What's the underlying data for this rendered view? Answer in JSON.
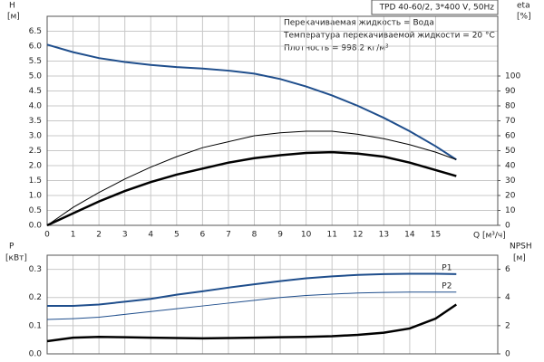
{
  "chart_data": [
    {
      "type": "line",
      "title": "TPD 40-60/2, 3*400 V, 50Hz",
      "annotations": [
        "Перекачиваемая жидкость = Вода",
        "Температура перекачиваемой жидкости = 20 °C",
        "Плотность = 998.2 кг/м³"
      ],
      "y_label": "H",
      "y_unit": "[м]",
      "y2_label": "eta",
      "y2_unit": "[%]",
      "x_label": "Q [м³/ч]",
      "x": [
        0,
        1,
        2,
        3,
        4,
        5,
        6,
        7,
        8,
        9,
        10,
        11,
        12,
        13,
        14,
        15,
        15.8
      ],
      "xlim": [
        0,
        17.4
      ],
      "xticks": [
        0,
        1,
        2,
        3,
        4,
        5,
        6,
        7,
        8,
        9,
        10,
        11,
        12,
        13,
        14,
        15
      ],
      "ylim": [
        0,
        7
      ],
      "yticks": [
        {
          "value": 0,
          "label": "0.0"
        },
        0.5,
        {
          "value": 1,
          "label": "1.0"
        },
        1.5,
        {
          "value": 2,
          "label": "2.0"
        },
        2.5,
        {
          "value": 3,
          "label": "3.0"
        },
        3.5,
        {
          "value": 4,
          "label": "4.0"
        },
        4.5,
        {
          "value": 5,
          "label": "5.0"
        },
        5.5,
        {
          "value": 6,
          "label": "6.0"
        },
        6.5
      ],
      "y2lim": [
        0,
        140
      ],
      "y2ticks": [
        0,
        10,
        20,
        30,
        40,
        50,
        60,
        70,
        80,
        90,
        100
      ],
      "grid": true,
      "series": [
        {
          "color": "#1f4e8c",
          "width": 2,
          "axis": "y",
          "values": [
            6.05,
            5.8,
            5.6,
            5.47,
            5.37,
            5.3,
            5.25,
            5.18,
            5.08,
            4.9,
            4.65,
            4.35,
            4.0,
            3.6,
            3.15,
            2.65,
            2.2
          ]
        },
        {
          "color": "#000000",
          "width": 1,
          "axis": "y2",
          "values": [
            0,
            12,
            22,
            31,
            39,
            46,
            52,
            56,
            60,
            62,
            63,
            63,
            61,
            58,
            54,
            49,
            44
          ]
        },
        {
          "color": "#000000",
          "width": 2.5,
          "axis": "y2",
          "values": [
            0,
            8,
            16,
            23,
            29,
            34,
            38,
            42,
            45,
            47,
            48.5,
            49,
            48,
            46,
            42,
            37,
            33
          ]
        }
      ]
    },
    {
      "type": "line",
      "y_label": "P",
      "y_unit": "[кВт]",
      "y2_label": "NPSH",
      "y2_unit": "[м]",
      "x": [
        0,
        1,
        2,
        3,
        4,
        5,
        6,
        7,
        8,
        9,
        10,
        11,
        12,
        13,
        14,
        15,
        15.8
      ],
      "xlim": [
        0,
        17.4
      ],
      "ylim": [
        0,
        0.35
      ],
      "yticks": [
        {
          "value": 0,
          "label": "0.0"
        },
        0.1,
        0.2,
        0.3
      ],
      "y2lim": [
        0,
        7
      ],
      "y2ticks": [
        0,
        2,
        4,
        6
      ],
      "grid": true,
      "series": [
        {
          "name": "P1",
          "color": "#1f4e8c",
          "width": 2,
          "axis": "y",
          "values": [
            0.17,
            0.17,
            0.175,
            0.185,
            0.195,
            0.21,
            0.222,
            0.235,
            0.247,
            0.258,
            0.268,
            0.275,
            0.28,
            0.283,
            0.284,
            0.284,
            0.283
          ]
        },
        {
          "name": "P2",
          "color": "#1f4e8c",
          "width": 1,
          "axis": "y",
          "values": [
            0.122,
            0.125,
            0.13,
            0.14,
            0.15,
            0.16,
            0.17,
            0.18,
            0.19,
            0.2,
            0.207,
            0.212,
            0.216,
            0.218,
            0.219,
            0.219,
            0.219
          ]
        },
        {
          "color": "#000000",
          "width": 2.5,
          "axis": "y2",
          "values": [
            0.9,
            1.15,
            1.2,
            1.18,
            1.15,
            1.12,
            1.1,
            1.12,
            1.15,
            1.18,
            1.2,
            1.25,
            1.35,
            1.5,
            1.8,
            2.5,
            3.5
          ]
        }
      ]
    }
  ]
}
